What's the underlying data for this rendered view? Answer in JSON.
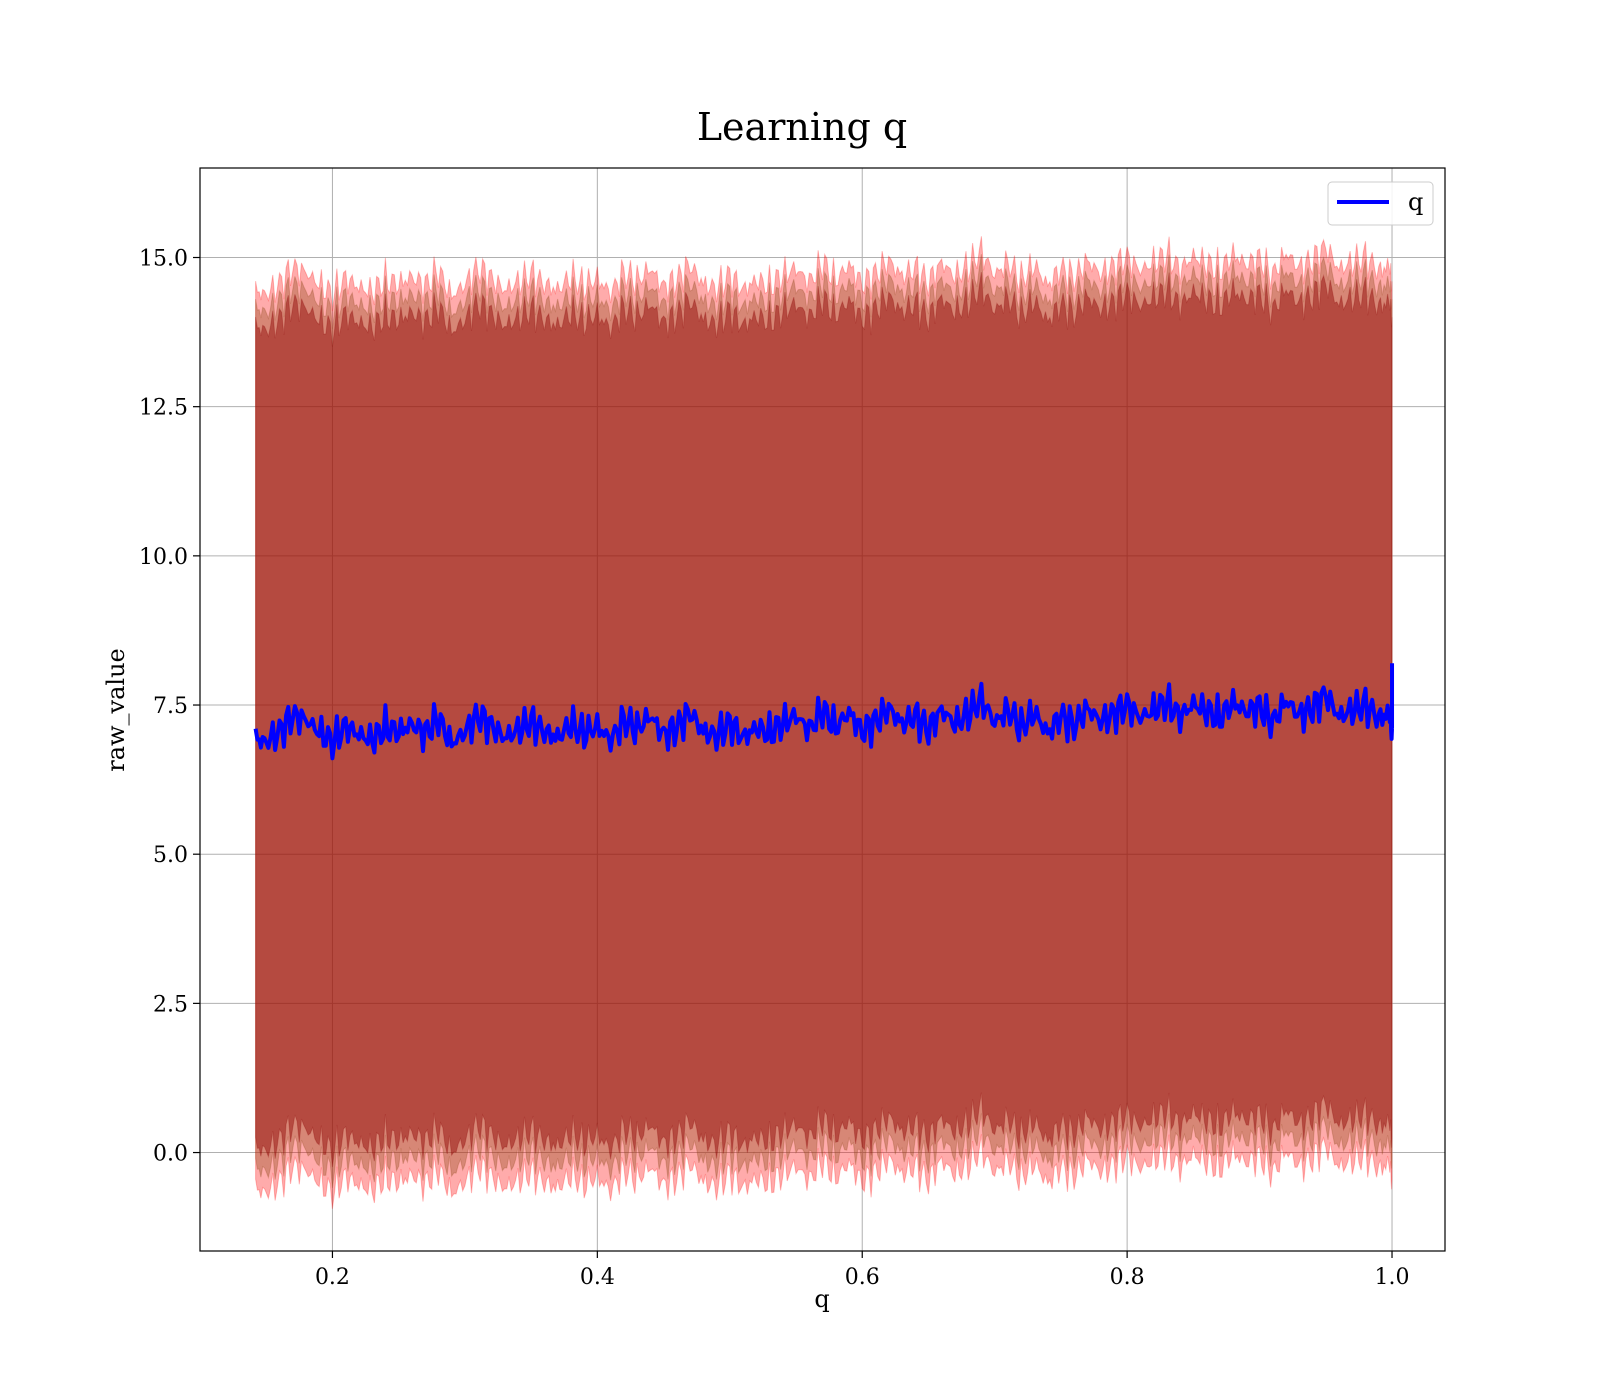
{
  "chart_data": {
    "type": "line",
    "title": "Learning q",
    "xlabel": "q",
    "ylabel": "raw_value",
    "xlim": [
      0.1,
      1.04
    ],
    "ylim": [
      -1.65,
      16.5
    ],
    "x_ticks": [
      0.2,
      0.4,
      0.6,
      0.8,
      1.0
    ],
    "x_tick_labels": [
      "0.2",
      "0.4",
      "0.6",
      "0.8",
      "1.0"
    ],
    "y_ticks": [
      0.0,
      2.5,
      5.0,
      7.5,
      10.0,
      12.5,
      15.0
    ],
    "y_tick_labels": [
      "0.0",
      "2.5",
      "5.0",
      "7.5",
      "10.0",
      "12.5",
      "15.0"
    ],
    "grid": true,
    "legend": {
      "position": "top-right",
      "entries": [
        "q"
      ]
    },
    "series": [
      {
        "name": "q",
        "color": "#0000ff",
        "x": [
          0.142,
          0.15,
          0.16,
          0.17,
          0.18,
          0.19,
          0.2,
          0.21,
          0.22,
          0.23,
          0.24,
          0.25,
          0.26,
          0.27,
          0.28,
          0.29,
          0.3,
          0.31,
          0.32,
          0.33,
          0.34,
          0.35,
          0.36,
          0.37,
          0.38,
          0.39,
          0.4,
          0.41,
          0.42,
          0.43,
          0.44,
          0.45,
          0.46,
          0.47,
          0.48,
          0.49,
          0.5,
          0.51,
          0.52,
          0.53,
          0.54,
          0.55,
          0.56,
          0.57,
          0.58,
          0.59,
          0.6,
          0.61,
          0.62,
          0.63,
          0.64,
          0.65,
          0.66,
          0.67,
          0.68,
          0.69,
          0.7,
          0.71,
          0.72,
          0.73,
          0.74,
          0.75,
          0.76,
          0.77,
          0.78,
          0.79,
          0.8,
          0.81,
          0.82,
          0.83,
          0.84,
          0.85,
          0.86,
          0.87,
          0.88,
          0.89,
          0.9,
          0.91,
          0.92,
          0.93,
          0.94,
          0.95,
          0.96,
          0.97,
          0.98,
          0.99,
          0.998,
          1.0
        ],
        "y": [
          6.93,
          6.88,
          7.05,
          7.32,
          7.25,
          7.05,
          6.88,
          7.15,
          7.0,
          6.92,
          7.12,
          7.05,
          7.18,
          7.02,
          7.28,
          6.85,
          7.05,
          7.32,
          7.15,
          6.95,
          7.08,
          7.22,
          7.05,
          6.95,
          7.18,
          7.02,
          7.15,
          6.9,
          7.25,
          7.1,
          7.32,
          7.0,
          7.12,
          7.38,
          7.05,
          6.98,
          7.2,
          6.95,
          7.12,
          7.02,
          7.2,
          7.32,
          7.08,
          7.42,
          7.12,
          7.38,
          7.05,
          7.22,
          7.45,
          7.18,
          7.32,
          7.08,
          7.42,
          7.18,
          7.35,
          7.6,
          7.2,
          7.42,
          7.12,
          7.38,
          7.02,
          7.32,
          7.15,
          7.45,
          7.22,
          7.35,
          7.5,
          7.28,
          7.42,
          7.55,
          7.3,
          7.52,
          7.4,
          7.28,
          7.55,
          7.38,
          7.48,
          7.2,
          7.58,
          7.32,
          7.45,
          7.68,
          7.3,
          7.42,
          7.5,
          7.28,
          7.35,
          7.1
        ],
        "spike": {
          "x": 1.0,
          "y": 8.2
        }
      }
    ],
    "bands": [
      {
        "name": "",
        "color": "#ff0000",
        "opacity": 0.33,
        "lower_offset": -7.55,
        "upper_offset": 7.5
      },
      {
        "name": "",
        "color": "#8b4513",
        "opacity": 0.35,
        "lower_offset": -7.2,
        "upper_offset": 7.2
      },
      {
        "name": "",
        "color": "#8b0000",
        "opacity": 0.45,
        "lower_offset": -6.85,
        "upper_offset": 6.9
      }
    ]
  }
}
